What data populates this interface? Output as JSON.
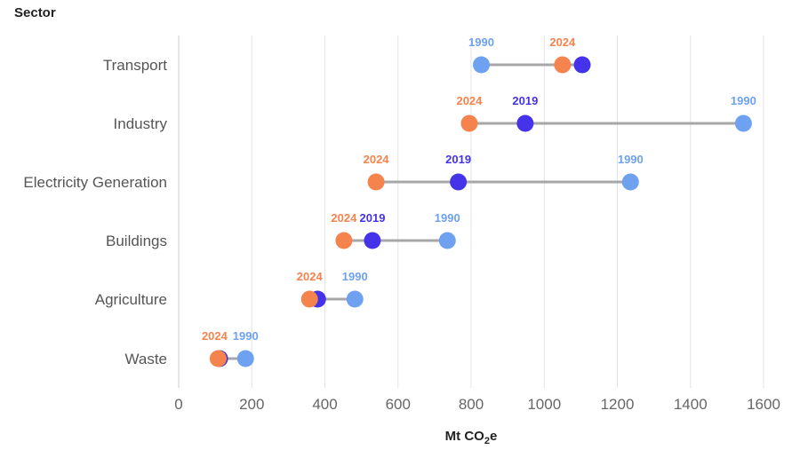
{
  "chart_data": {
    "type": "dumbbell",
    "yaxis_title": "Sector",
    "xlabel_main": "Mt CO",
    "xlabel_sub": "2",
    "xlabel_suffix": "e",
    "xlim": [
      0,
      1600
    ],
    "xticks": [
      0,
      200,
      400,
      600,
      800,
      1000,
      1200,
      1400,
      1600
    ],
    "categories": [
      "Transport",
      "Industry",
      "Electricity Generation",
      "Buildings",
      "Agriculture",
      "Waste"
    ],
    "series": [
      {
        "name": "1990",
        "color": "#6ea1ef",
        "values": [
          828,
          1545,
          1236,
          735,
          482,
          183
        ]
      },
      {
        "name": "2019",
        "color": "#4433e8",
        "values": [
          1104,
          948,
          765,
          530,
          380,
          112
        ]
      },
      {
        "name": "2024",
        "color": "#f5834e",
        "values": [
          1050,
          795,
          540,
          452,
          358,
          108
        ]
      }
    ],
    "point_labels": [
      [
        "1990",
        "2024"
      ],
      [
        "2024",
        "2019",
        "1990"
      ],
      [
        "2024",
        "2019",
        "1990"
      ],
      [
        "2024",
        "2019",
        "1990"
      ],
      [
        "2024",
        "1990"
      ],
      [
        "2024",
        "1990"
      ]
    ],
    "connector_color": "#a7a7a7",
    "grid": true
  }
}
